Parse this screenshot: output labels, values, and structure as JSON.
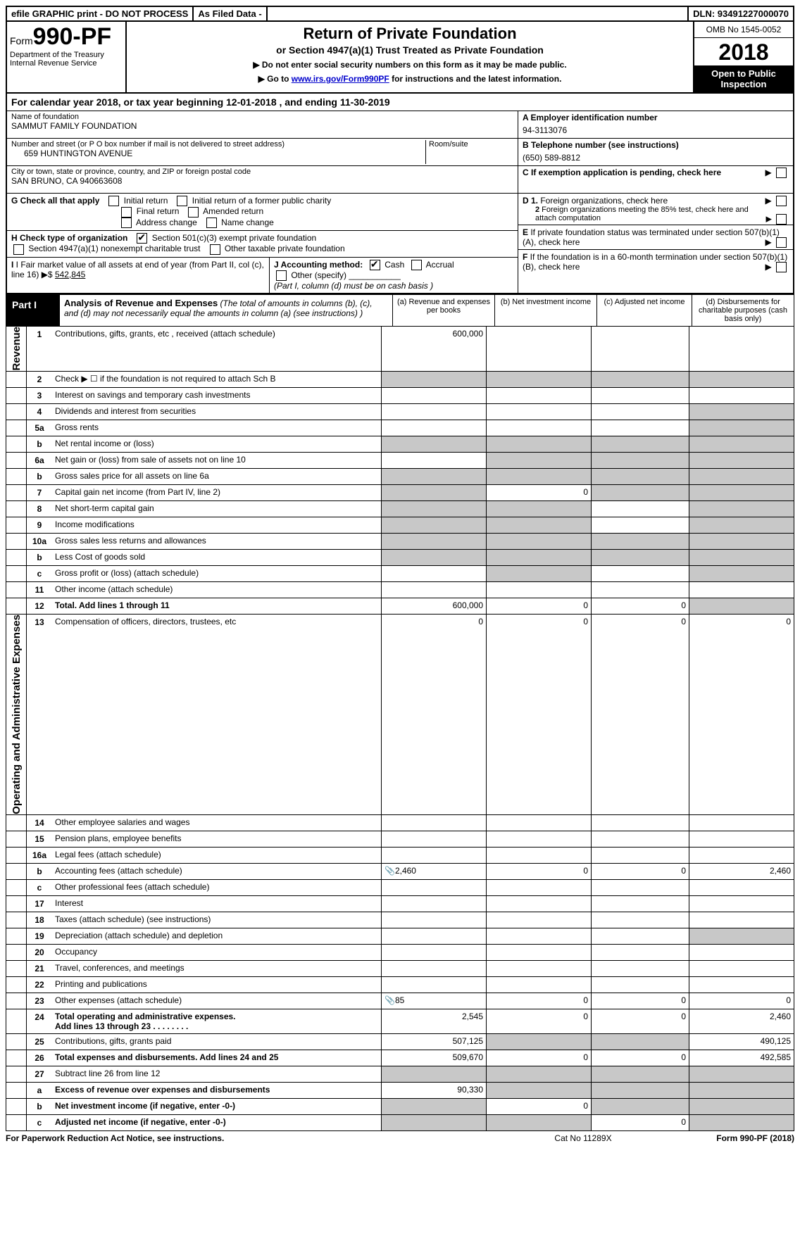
{
  "topstrip": {
    "efile": "efile GRAPHIC print - DO NOT PROCESS",
    "asfiled": "As Filed Data -",
    "dln": "DLN: 93491227000070"
  },
  "header": {
    "form_label": "Form",
    "form_num": "990-PF",
    "dept": "Department of the Treasury",
    "irs": "Internal Revenue Service",
    "title": "Return of Private Foundation",
    "subtitle": "or Section 4947(a)(1) Trust Treated as Private Foundation",
    "note1": "▶ Do not enter social security numbers on this form as it may be made public.",
    "note2_pre": "▶ Go to ",
    "note2_link": "www.irs.gov/Form990PF",
    "note2_post": " for instructions and the latest information.",
    "omb": "OMB No 1545-0052",
    "year": "2018",
    "open": "Open to Public Inspection"
  },
  "cal_year": "For calendar year 2018, or tax year beginning 12-01-2018            , and ending 11-30-2019",
  "ident": {
    "name_lbl": "Name of foundation",
    "name": "SAMMUT FAMILY FOUNDATION",
    "addr_lbl": "Number and street (or P O  box number if mail is not delivered to street address)",
    "addr": "659 HUNTINGTON AVENUE",
    "room_lbl": "Room/suite",
    "city_lbl": "City or town, state or province, country, and ZIP or foreign postal code",
    "city": "SAN BRUNO, CA  940663608",
    "a_lbl": "A Employer identification number",
    "a_val": "94-3113076",
    "b_lbl": "B Telephone number (see instructions)",
    "b_val": "(650) 589-8812",
    "c_lbl": "C If exemption application is pending, check here"
  },
  "g": {
    "label": "G Check all that apply",
    "opts": [
      "Initial return",
      "Initial return of a former public charity",
      "Final return",
      "Amended return",
      "Address change",
      "Name change"
    ]
  },
  "h": {
    "label": "H Check type of organization",
    "opt1": "Section 501(c)(3) exempt private foundation",
    "opt2": "Section 4947(a)(1) nonexempt charitable trust",
    "opt3": "Other taxable private foundation"
  },
  "i": {
    "label": "I Fair market value of all assets at end of year (from Part II, col  (c), line 16)",
    "arrow": "▶$",
    "val": "542,845"
  },
  "j": {
    "label": "J Accounting method:",
    "cash": "Cash",
    "accr": "Accrual",
    "other": "Other (specify)",
    "note": "(Part I, column (d) must be on cash basis )"
  },
  "d1": "D 1. Foreign organizations, check here",
  "d2": "2 Foreign organizations meeting the 85% test, check here and attach computation",
  "e": "E  If private foundation status was terminated under section 507(b)(1)(A), check here",
  "f": "F  If the foundation is in a 60-month termination under section 507(b)(1)(B), check here",
  "part1": {
    "tag": "Part I",
    "title": "Analysis of Revenue and Expenses",
    "titlesub": " (The total of amounts in columns (b), (c), and (d) may not necessarily equal the amounts in column (a) (see instructions) )",
    "col_a": "(a)   Revenue and expenses per books",
    "col_b": "(b)  Net investment income",
    "col_c": "(c)  Adjusted net income",
    "col_d": "(d)  Disbursements for charitable purposes (cash basis only)"
  },
  "side_rev": "Revenue",
  "side_exp": "Operating and Administrative Expenses",
  "rows": {
    "r1": {
      "n": "1",
      "d": "Contributions, gifts, grants, etc , received (attach schedule)",
      "a": "600,000"
    },
    "r2": {
      "n": "2",
      "d": "Check ▶ ☐ if the foundation is not required to attach Sch  B"
    },
    "r3": {
      "n": "3",
      "d": "Interest on savings and temporary cash investments"
    },
    "r4": {
      "n": "4",
      "d": "Dividends and interest from securities"
    },
    "r5a": {
      "n": "5a",
      "d": "Gross rents"
    },
    "r5b": {
      "n": "b",
      "d": "Net rental income or (loss)"
    },
    "r6a": {
      "n": "6a",
      "d": "Net gain or (loss) from sale of assets not on line 10"
    },
    "r6b": {
      "n": "b",
      "d": "Gross sales price for all assets on line 6a"
    },
    "r7": {
      "n": "7",
      "d": "Capital gain net income (from Part IV, line 2)",
      "b": "0"
    },
    "r8": {
      "n": "8",
      "d": "Net short-term capital gain"
    },
    "r9": {
      "n": "9",
      "d": "Income modifications"
    },
    "r10a": {
      "n": "10a",
      "d": "Gross sales less returns and allowances"
    },
    "r10b": {
      "n": "b",
      "d": "Less  Cost of goods sold"
    },
    "r10c": {
      "n": "c",
      "d": "Gross profit or (loss) (attach schedule)"
    },
    "r11": {
      "n": "11",
      "d": "Other income (attach schedule)"
    },
    "r12": {
      "n": "12",
      "d": "Total. Add lines 1 through 11",
      "a": "600,000",
      "b": "0",
      "c": "0"
    },
    "r13": {
      "n": "13",
      "d": "Compensation of officers, directors, trustees, etc",
      "a": "0",
      "b": "0",
      "c": "0",
      "dd": "0"
    },
    "r14": {
      "n": "14",
      "d": "Other employee salaries and wages"
    },
    "r15": {
      "n": "15",
      "d": "Pension plans, employee benefits"
    },
    "r16a": {
      "n": "16a",
      "d": "Legal fees (attach schedule)"
    },
    "r16b": {
      "n": "b",
      "d": "Accounting fees (attach schedule)",
      "a": "2,460",
      "b": "0",
      "c": "0",
      "dd": "2,460",
      "icon": true
    },
    "r16c": {
      "n": "c",
      "d": "Other professional fees (attach schedule)"
    },
    "r17": {
      "n": "17",
      "d": "Interest"
    },
    "r18": {
      "n": "18",
      "d": "Taxes (attach schedule) (see instructions)"
    },
    "r19": {
      "n": "19",
      "d": "Depreciation (attach schedule) and depletion"
    },
    "r20": {
      "n": "20",
      "d": "Occupancy"
    },
    "r21": {
      "n": "21",
      "d": "Travel, conferences, and meetings"
    },
    "r22": {
      "n": "22",
      "d": "Printing and publications"
    },
    "r23": {
      "n": "23",
      "d": "Other expenses (attach schedule)",
      "a": "85",
      "b": "0",
      "c": "0",
      "dd": "0",
      "icon": true
    },
    "r24": {
      "n": "24",
      "d": "Total operating and administrative expenses.",
      "d2": "Add lines 13 through 23",
      "a": "2,545",
      "b": "0",
      "c": "0",
      "dd": "2,460"
    },
    "r25": {
      "n": "25",
      "d": "Contributions, gifts, grants paid",
      "a": "507,125",
      "dd": "490,125"
    },
    "r26": {
      "n": "26",
      "d": "Total expenses and disbursements. Add lines 24 and 25",
      "a": "509,670",
      "b": "0",
      "c": "0",
      "dd": "492,585"
    },
    "r27": {
      "n": "27",
      "d": "Subtract line 26 from line 12"
    },
    "r27a": {
      "n": "a",
      "d": "Excess of revenue over expenses and disbursements",
      "a": "90,330"
    },
    "r27b": {
      "n": "b",
      "d": "Net investment income (if negative, enter -0-)",
      "b": "0"
    },
    "r27c": {
      "n": "c",
      "d": "Adjusted net income (if negative, enter -0-)",
      "c": "0"
    }
  },
  "footer": {
    "left": "For Paperwork Reduction Act Notice, see instructions.",
    "mid": "Cat  No  11289X",
    "right": "Form 990-PF (2018)"
  }
}
